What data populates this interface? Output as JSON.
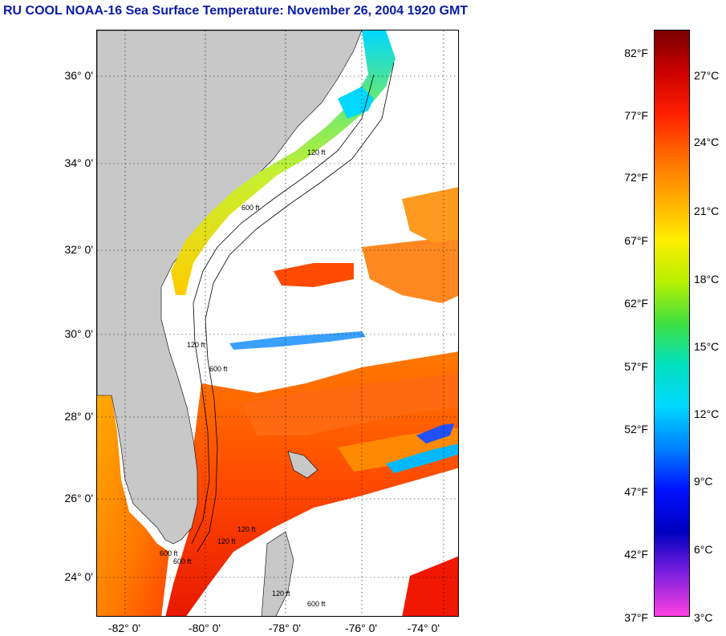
{
  "title": {
    "text": "RU COOL  NOAA-16  Sea Surface Temperature:  November 26, 2004 1920 GMT",
    "color": "#0a1aa8"
  },
  "map": {
    "type": "satellite-sst-map",
    "land_color": "#c8c8c8",
    "cloud_color": "#ffffff",
    "latitude_labels": [
      "36° 0'",
      "34° 0'",
      "32° 0'",
      "30° 0'",
      "28° 0'",
      "26° 0'",
      "24° 0'"
    ],
    "longitude_labels": [
      "-82° 0'",
      "-80° 0'",
      "-78° 0'",
      "-76° 0'",
      "-74° 0'"
    ],
    "isobath_labels": [
      "120 ft",
      "600 ft",
      "120 ft",
      "600 ft",
      "120 ft",
      "600 ft",
      "120 ft",
      "600 ft",
      "120 ft",
      "600 ft"
    ]
  },
  "colorbar": {
    "fahrenheit_labels": [
      "82°F",
      "77°F",
      "72°F",
      "67°F",
      "62°F",
      "57°F",
      "52°F",
      "47°F",
      "42°F",
      "37°F"
    ],
    "celsius_labels": [
      "27°C",
      "24°C",
      "21°C",
      "18°C",
      "15°C",
      "12°C",
      "9°C",
      "6°C",
      "3°C"
    ],
    "stops": [
      "#7a0000",
      "#cc0000",
      "#ff2000",
      "#ff6a00",
      "#ffaa00",
      "#ffee00",
      "#b8f000",
      "#40e040",
      "#00e0c0",
      "#00d8ff",
      "#0080ff",
      "#0010ff",
      "#0000c0",
      "#8020e0",
      "#ff40e0"
    ],
    "range_f": [
      37,
      84
    ]
  }
}
